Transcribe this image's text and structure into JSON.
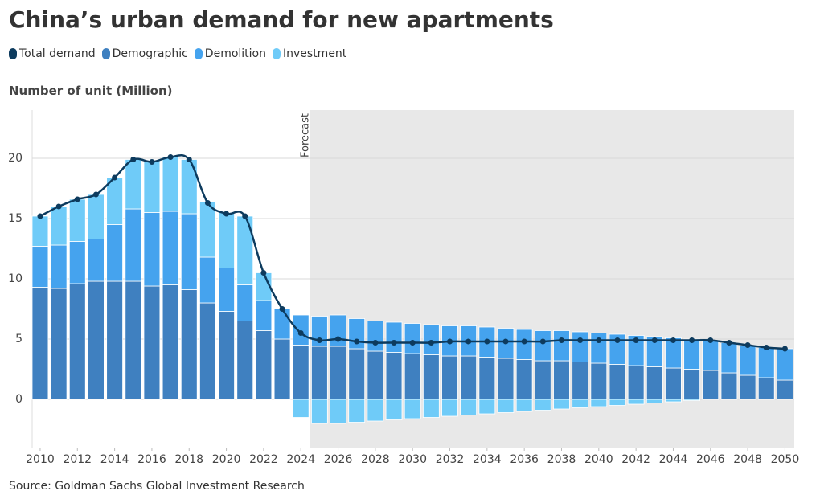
{
  "chart_data": {
    "type": "bar",
    "title": "China’s urban demand for new apartments",
    "y_label": "Number of unit (Million)",
    "source": "Source: Goldman Sachs Global Investment Research",
    "annotation": {
      "text": "Forecast",
      "x": 2024.5
    },
    "x": [
      2010,
      2011,
      2012,
      2013,
      2014,
      2015,
      2016,
      2017,
      2018,
      2019,
      2020,
      2021,
      2022,
      2023,
      2024,
      2025,
      2026,
      2027,
      2028,
      2029,
      2030,
      2031,
      2032,
      2033,
      2034,
      2035,
      2036,
      2037,
      2038,
      2039,
      2040,
      2041,
      2042,
      2043,
      2044,
      2045,
      2046,
      2047,
      2048,
      2049,
      2050
    ],
    "xlim": [
      2009.57,
      2050.5
    ],
    "xticks": [
      2010,
      2012,
      2014,
      2016,
      2018,
      2020,
      2022,
      2024,
      2026,
      2028,
      2030,
      2032,
      2034,
      2036,
      2038,
      2040,
      2042,
      2044,
      2046,
      2048,
      2050
    ],
    "ylim": [
      -4,
      24
    ],
    "yticks": [
      0,
      5,
      10,
      15,
      20
    ],
    "grid": true,
    "stacked": true,
    "series": [
      {
        "name": "Total demand",
        "type": "line",
        "color": "#0d3b5e",
        "values": [
          15.2,
          16.0,
          16.6,
          17.0,
          18.4,
          19.9,
          19.7,
          20.1,
          19.9,
          16.3,
          15.4,
          15.2,
          10.5,
          7.5,
          5.5,
          4.9,
          5.0,
          4.8,
          4.7,
          4.7,
          4.7,
          4.7,
          4.8,
          4.8,
          4.8,
          4.8,
          4.8,
          4.8,
          4.9,
          4.9,
          4.9,
          4.9,
          4.9,
          4.9,
          4.9,
          4.9,
          4.9,
          4.7,
          4.5,
          4.3,
          4.2
        ]
      },
      {
        "name": "Demographic",
        "type": "bar",
        "color": "#3f80c0",
        "values": [
          9.3,
          9.2,
          9.6,
          9.8,
          9.8,
          9.8,
          9.4,
          9.5,
          9.1,
          8.0,
          7.3,
          6.5,
          5.7,
          5.0,
          4.5,
          4.4,
          4.4,
          4.2,
          4.0,
          3.9,
          3.8,
          3.7,
          3.6,
          3.6,
          3.5,
          3.4,
          3.3,
          3.2,
          3.2,
          3.1,
          3.0,
          2.9,
          2.8,
          2.7,
          2.6,
          2.5,
          2.4,
          2.2,
          2.0,
          1.8,
          1.6
        ]
      },
      {
        "name": "Demolition",
        "type": "bar",
        "color": "#45a3ee",
        "values": [
          3.4,
          3.6,
          3.5,
          3.5,
          4.7,
          6.0,
          6.1,
          6.1,
          6.3,
          3.8,
          3.6,
          3.0,
          2.5,
          2.5,
          2.5,
          2.5,
          2.6,
          2.5,
          2.5,
          2.5,
          2.5,
          2.5,
          2.5,
          2.5,
          2.5,
          2.5,
          2.5,
          2.5,
          2.5,
          2.5,
          2.5,
          2.5,
          2.5,
          2.5,
          2.5,
          2.5,
          2.5,
          2.5,
          2.5,
          2.5,
          2.6
        ]
      },
      {
        "name": "Investment",
        "type": "bar",
        "color": "#6fcbf8",
        "values": [
          2.5,
          3.2,
          3.5,
          3.7,
          3.9,
          4.1,
          4.3,
          4.5,
          4.5,
          4.6,
          4.6,
          5.7,
          2.3,
          0,
          -1.5,
          -2.0,
          -2.0,
          -1.9,
          -1.8,
          -1.7,
          -1.6,
          -1.5,
          -1.4,
          -1.3,
          -1.2,
          -1.1,
          -1.0,
          -0.9,
          -0.8,
          -0.7,
          -0.6,
          -0.5,
          -0.4,
          -0.3,
          -0.2,
          -0.1,
          0,
          0,
          0,
          0,
          0
        ]
      }
    ]
  }
}
